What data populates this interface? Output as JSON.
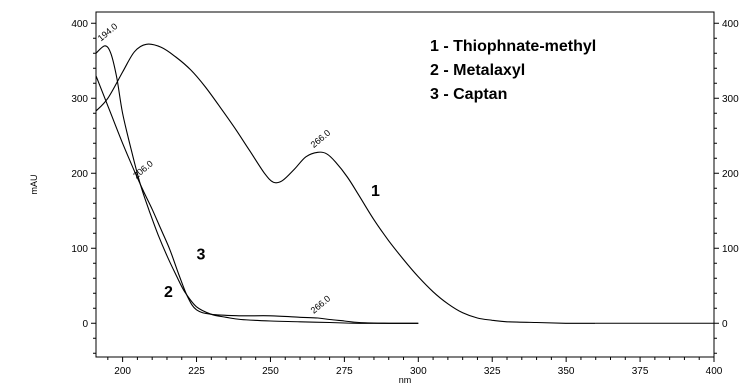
{
  "chart_data": {
    "type": "line",
    "xlabel": "nm",
    "ylabel": "mAU",
    "xlim": [
      191,
      400
    ],
    "ylim": [
      -45,
      415
    ],
    "x_ticks": [
      200,
      225,
      250,
      275,
      300,
      325,
      350,
      375,
      400
    ],
    "x_tick_labels": [
      "200",
      "225",
      "250",
      "275",
      "300",
      "325",
      "350",
      "375",
      "400"
    ],
    "y_ticks": [
      0,
      100,
      200,
      300,
      400
    ],
    "y_tick_labels": [
      "0",
      "100",
      "200",
      "300",
      "400"
    ],
    "legend": [
      "1 - Thiophnate-methyl",
      "2 - Metalaxyl",
      "3 - Captan"
    ],
    "series": [
      {
        "name": "1",
        "x": [
          191,
          195,
          200,
          204,
          208,
          213,
          218,
          223,
          228,
          233,
          238,
          243,
          248,
          251,
          254,
          258,
          262,
          266,
          269,
          272,
          276,
          280,
          285,
          290,
          295,
          300,
          305,
          310,
          315,
          320,
          325,
          330,
          340,
          350,
          360
        ],
        "values": [
          283,
          300,
          335,
          362,
          372,
          368,
          355,
          338,
          315,
          288,
          260,
          230,
          200,
          188,
          190,
          205,
          222,
          228,
          226,
          215,
          195,
          170,
          138,
          110,
          85,
          62,
          42,
          26,
          14,
          7,
          4,
          2,
          1,
          0,
          0
        ]
      },
      {
        "name": "2",
        "x": [
          191,
          194,
          196,
          198,
          200,
          203,
          206,
          209,
          212,
          215,
          218,
          221,
          225,
          230,
          235,
          240,
          250,
          260,
          270,
          280,
          300
        ],
        "values": [
          360,
          370,
          360,
          328,
          280,
          230,
          185,
          150,
          118,
          90,
          65,
          42,
          22,
          12,
          8,
          5,
          3,
          2,
          1,
          0,
          0
        ]
      },
      {
        "name": "3",
        "x": [
          191,
          195,
          200,
          206,
          210,
          213,
          216,
          219,
          222,
          225,
          230,
          240,
          250,
          260,
          266,
          270,
          275,
          280,
          290,
          300
        ],
        "values": [
          330,
          290,
          240,
          185,
          152,
          125,
          98,
          65,
          35,
          18,
          12,
          10,
          10,
          8,
          7,
          5,
          3,
          1,
          0,
          0
        ]
      }
    ],
    "peak_labels": [
      {
        "text": "194.0",
        "x": 194,
        "y": 370
      },
      {
        "text": "206.0",
        "x": 206,
        "y": 187
      },
      {
        "text": "266.0",
        "x": 266,
        "y": 228
      },
      {
        "text": "266.0",
        "x": 266,
        "y": 7
      }
    ],
    "curve_numbers": [
      {
        "text": "1",
        "x": 284,
        "y": 170
      },
      {
        "text": "2",
        "x": 214,
        "y": 35
      },
      {
        "text": "3",
        "x": 225,
        "y": 85
      }
    ],
    "grid": false,
    "legend_position": "top-right"
  }
}
